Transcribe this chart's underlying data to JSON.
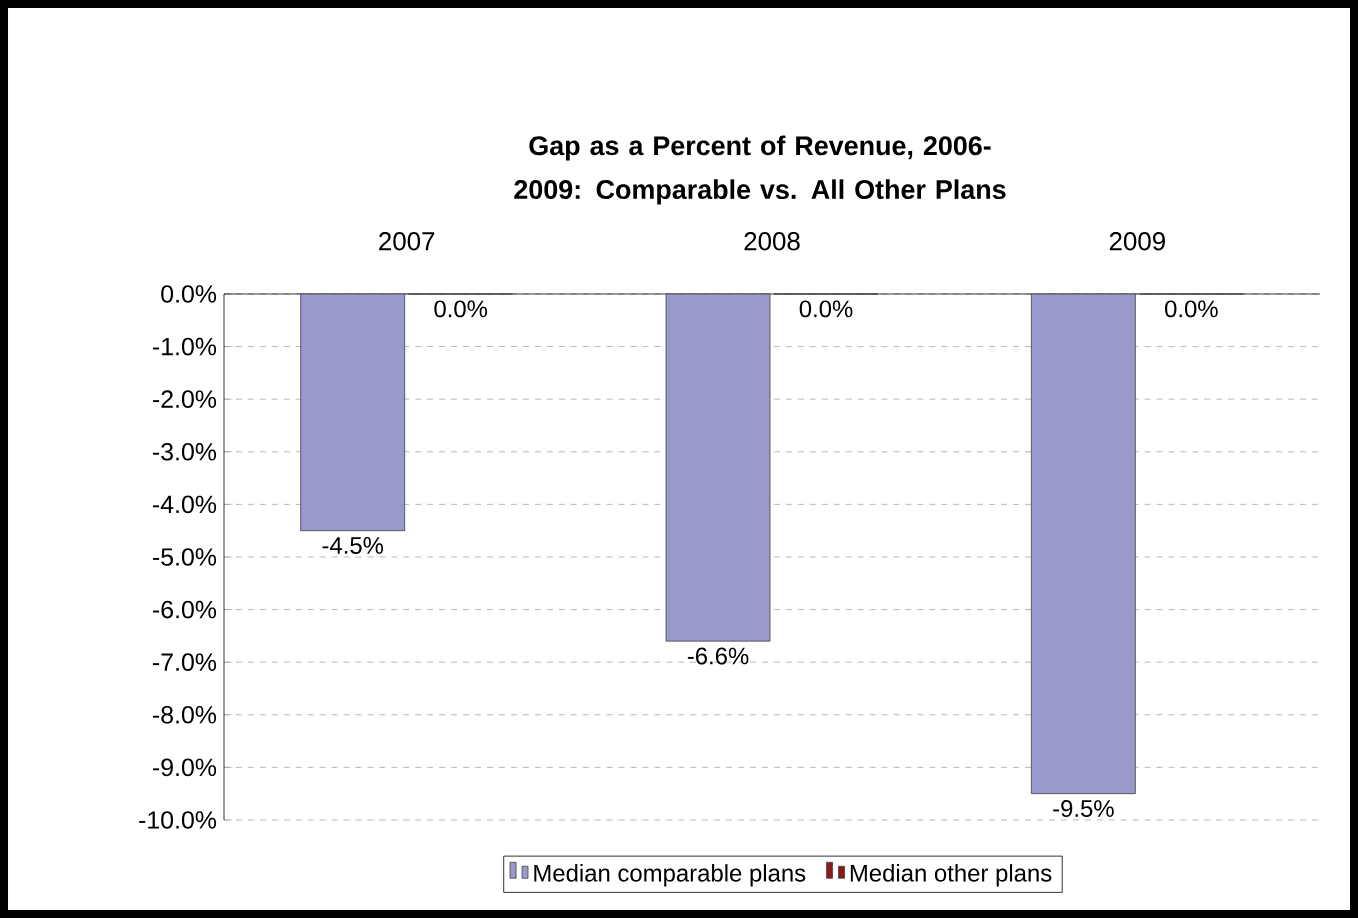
{
  "chart_data": {
    "type": "bar",
    "title": "Gap as a Percent of Revenue, 2006-2009: Comparable vs. All Other Plans",
    "categories": [
      "2007",
      "2008",
      "2009"
    ],
    "series": [
      {
        "name": "Median comparable plans",
        "color": "#9999cc",
        "values": [
          -4.5,
          -6.6,
          -9.5
        ],
        "value_labels": [
          "-4.5%",
          "-6.6%",
          "-9.5%"
        ]
      },
      {
        "name": "Median other plans",
        "color": "#8b1a1a",
        "values": [
          0,
          0,
          0
        ],
        "value_labels": [
          "0.0%",
          "0.0%",
          "0.0%"
        ]
      }
    ],
    "ylim": [
      -10,
      0
    ],
    "yticks": [
      {
        "value": 0,
        "label": "0.0%"
      },
      {
        "value": -1,
        "label": "-1.0%"
      },
      {
        "value": -2,
        "label": "-2.0%"
      },
      {
        "value": -3,
        "label": "-3.0%"
      },
      {
        "value": -4,
        "label": "-4.0%"
      },
      {
        "value": -5,
        "label": "-5.0%"
      },
      {
        "value": -6,
        "label": "-6.0%"
      },
      {
        "value": -7,
        "label": "-7.0%"
      },
      {
        "value": -8,
        "label": "-8.0%"
      },
      {
        "value": -9,
        "label": "-9.0%"
      },
      {
        "value": -10,
        "label": "-10.0%"
      }
    ],
    "grid": "y",
    "legend": "bottom"
  }
}
